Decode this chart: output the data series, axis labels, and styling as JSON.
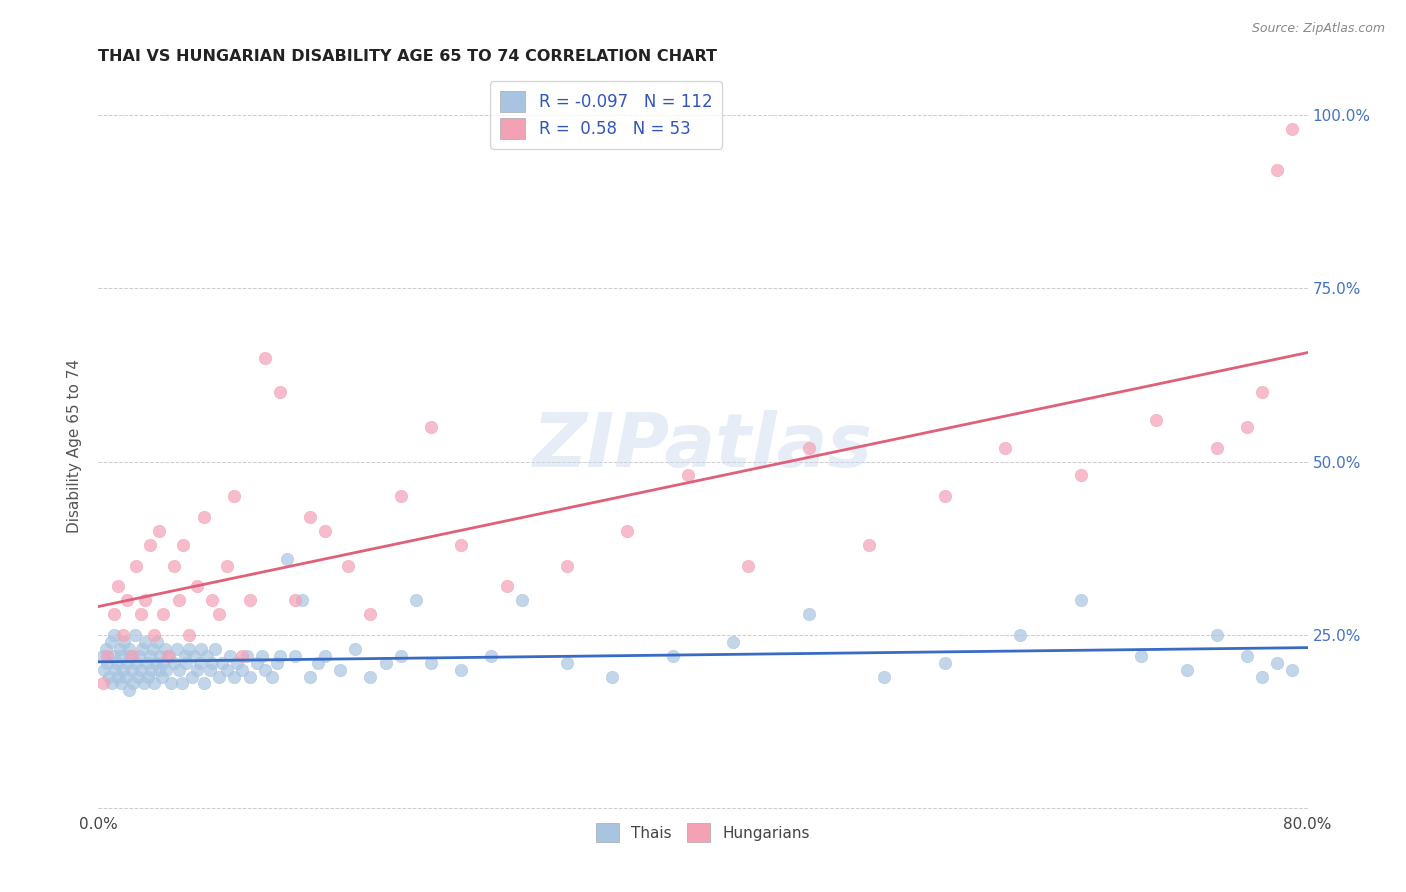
{
  "title": "THAI VS HUNGARIAN DISABILITY AGE 65 TO 74 CORRELATION CHART",
  "source": "Source: ZipAtlas.com",
  "ylabel": "Disability Age 65 to 74",
  "xlim": [
    0.0,
    0.8
  ],
  "ylim": [
    -0.005,
    1.05
  ],
  "thai_color": "#a8c4e0",
  "hungarian_color": "#f4a0b5",
  "thai_line_color": "#3a6bc4",
  "hungarian_line_color": "#e0607a",
  "thai_R": -0.097,
  "thai_N": 112,
  "hungarian_R": 0.58,
  "hungarian_N": 53,
  "watermark": "ZIPatlas",
  "background_color": "#ffffff",
  "grid_color": "#cccccc",
  "thai_x": [
    0.003,
    0.004,
    0.005,
    0.006,
    0.007,
    0.008,
    0.009,
    0.01,
    0.01,
    0.011,
    0.012,
    0.013,
    0.014,
    0.015,
    0.015,
    0.016,
    0.017,
    0.018,
    0.019,
    0.02,
    0.02,
    0.021,
    0.022,
    0.023,
    0.024,
    0.025,
    0.026,
    0.027,
    0.028,
    0.029,
    0.03,
    0.031,
    0.032,
    0.033,
    0.034,
    0.035,
    0.036,
    0.037,
    0.038,
    0.039,
    0.04,
    0.041,
    0.042,
    0.043,
    0.044,
    0.045,
    0.047,
    0.048,
    0.05,
    0.052,
    0.053,
    0.055,
    0.057,
    0.058,
    0.06,
    0.062,
    0.063,
    0.065,
    0.067,
    0.068,
    0.07,
    0.072,
    0.074,
    0.075,
    0.077,
    0.08,
    0.082,
    0.085,
    0.087,
    0.09,
    0.092,
    0.095,
    0.098,
    0.1,
    0.105,
    0.108,
    0.11,
    0.115,
    0.118,
    0.12,
    0.125,
    0.13,
    0.135,
    0.14,
    0.145,
    0.15,
    0.16,
    0.17,
    0.18,
    0.19,
    0.2,
    0.21,
    0.22,
    0.24,
    0.26,
    0.28,
    0.31,
    0.34,
    0.38,
    0.42,
    0.47,
    0.52,
    0.56,
    0.61,
    0.65,
    0.69,
    0.72,
    0.74,
    0.76,
    0.77,
    0.78,
    0.79
  ],
  "thai_y": [
    0.22,
    0.2,
    0.23,
    0.21,
    0.19,
    0.24,
    0.18,
    0.22,
    0.25,
    0.2,
    0.21,
    0.19,
    0.23,
    0.22,
    0.18,
    0.2,
    0.24,
    0.19,
    0.21,
    0.23,
    0.17,
    0.22,
    0.2,
    0.18,
    0.25,
    0.21,
    0.19,
    0.22,
    0.2,
    0.23,
    0.18,
    0.24,
    0.21,
    0.19,
    0.22,
    0.2,
    0.23,
    0.18,
    0.21,
    0.24,
    0.2,
    0.22,
    0.19,
    0.21,
    0.23,
    0.2,
    0.22,
    0.18,
    0.21,
    0.23,
    0.2,
    0.18,
    0.22,
    0.21,
    0.23,
    0.19,
    0.22,
    0.2,
    0.21,
    0.23,
    0.18,
    0.22,
    0.2,
    0.21,
    0.23,
    0.19,
    0.21,
    0.2,
    0.22,
    0.19,
    0.21,
    0.2,
    0.22,
    0.19,
    0.21,
    0.22,
    0.2,
    0.19,
    0.21,
    0.22,
    0.36,
    0.22,
    0.3,
    0.19,
    0.21,
    0.22,
    0.2,
    0.23,
    0.19,
    0.21,
    0.22,
    0.3,
    0.21,
    0.2,
    0.22,
    0.3,
    0.21,
    0.19,
    0.22,
    0.24,
    0.28,
    0.19,
    0.21,
    0.25,
    0.3,
    0.22,
    0.2,
    0.25,
    0.22,
    0.19,
    0.21,
    0.2
  ],
  "hungarian_x": [
    0.003,
    0.006,
    0.01,
    0.013,
    0.016,
    0.019,
    0.022,
    0.025,
    0.028,
    0.031,
    0.034,
    0.037,
    0.04,
    0.043,
    0.046,
    0.05,
    0.053,
    0.056,
    0.06,
    0.065,
    0.07,
    0.075,
    0.08,
    0.085,
    0.09,
    0.095,
    0.1,
    0.11,
    0.12,
    0.13,
    0.14,
    0.15,
    0.165,
    0.18,
    0.2,
    0.22,
    0.24,
    0.27,
    0.31,
    0.35,
    0.39,
    0.43,
    0.47,
    0.51,
    0.56,
    0.6,
    0.65,
    0.7,
    0.74,
    0.76,
    0.77,
    0.78,
    0.79
  ],
  "hungarian_y": [
    0.18,
    0.22,
    0.28,
    0.32,
    0.25,
    0.3,
    0.22,
    0.35,
    0.28,
    0.3,
    0.38,
    0.25,
    0.4,
    0.28,
    0.22,
    0.35,
    0.3,
    0.38,
    0.25,
    0.32,
    0.42,
    0.3,
    0.28,
    0.35,
    0.45,
    0.22,
    0.3,
    0.65,
    0.6,
    0.3,
    0.42,
    0.4,
    0.35,
    0.28,
    0.45,
    0.55,
    0.38,
    0.32,
    0.35,
    0.4,
    0.48,
    0.35,
    0.52,
    0.38,
    0.45,
    0.52,
    0.48,
    0.56,
    0.52,
    0.55,
    0.6,
    0.92,
    0.98
  ]
}
